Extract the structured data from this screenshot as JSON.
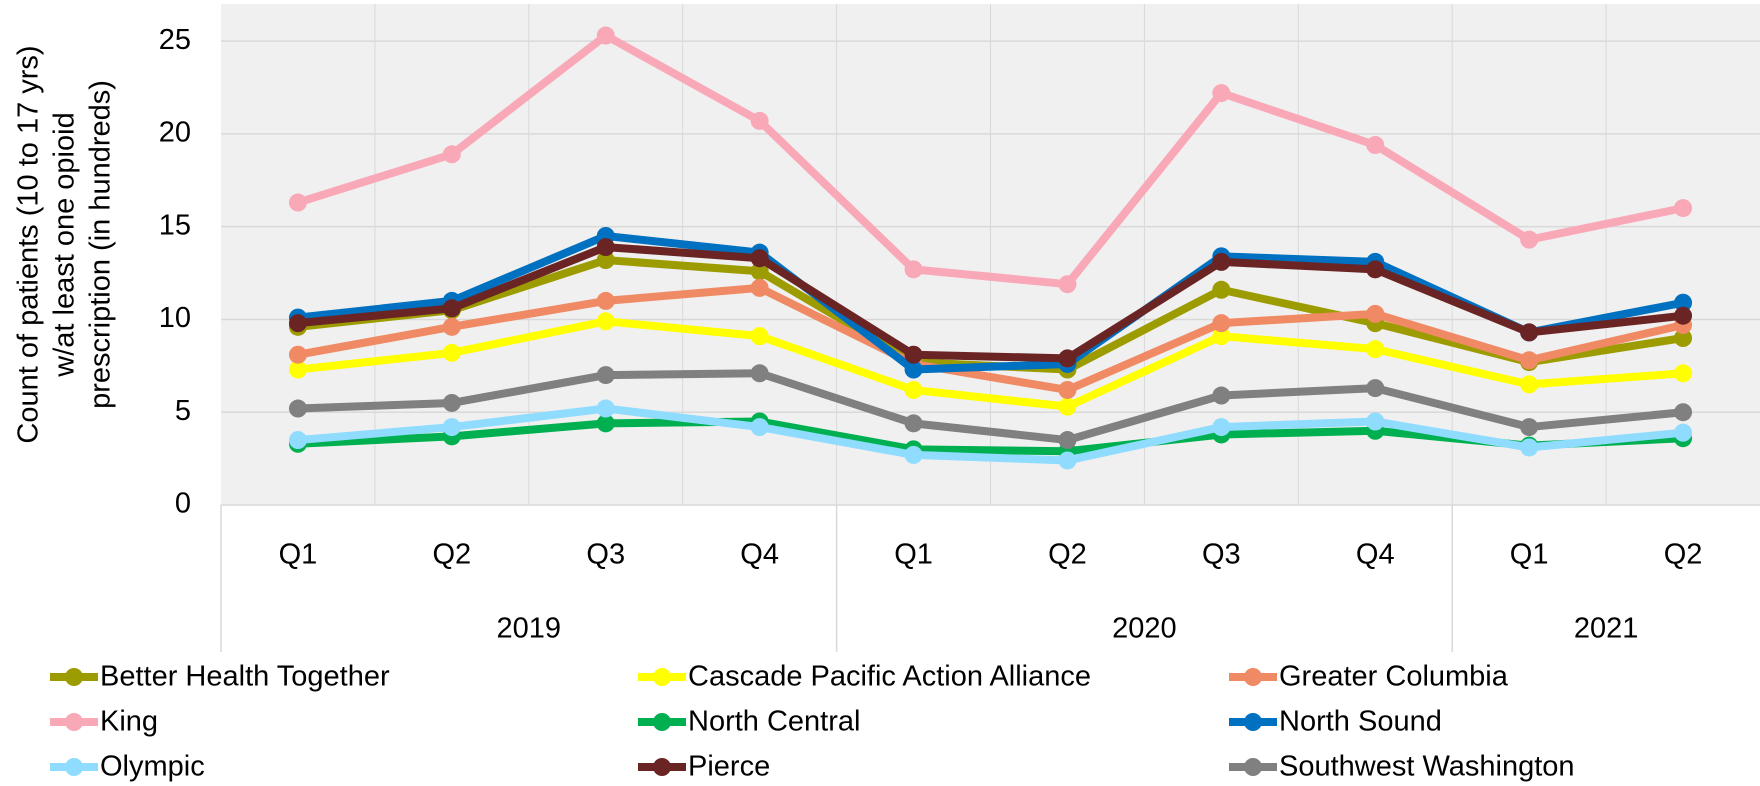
{
  "chart_data": {
    "type": "line",
    "ylabel": [
      "Count of patients (10 to 17 yrs)",
      "w/at least one opioid",
      "prescription (in hundreds)"
    ],
    "category_groups": [
      {
        "label": "2019",
        "categories": [
          "Q1",
          "Q2",
          "Q3",
          "Q4"
        ]
      },
      {
        "label": "2020",
        "categories": [
          "Q1",
          "Q2",
          "Q3",
          "Q4"
        ]
      },
      {
        "label": "2021",
        "categories": [
          "Q1",
          "Q2"
        ]
      }
    ],
    "ylim": [
      0,
      27
    ],
    "yticks": [
      0,
      5,
      10,
      15,
      20,
      25
    ],
    "grid": true,
    "legend": "bottom",
    "series": [
      {
        "name": "Better Health Together",
        "color": "#9c9c00",
        "values": [
          9.6,
          10.5,
          13.2,
          12.6,
          7.7,
          7.3,
          11.6,
          9.8,
          7.7,
          9.0
        ]
      },
      {
        "name": "Cascade Pacific Action Alliance",
        "color": "#ffff00",
        "values": [
          7.3,
          8.2,
          9.9,
          9.1,
          6.2,
          5.3,
          9.1,
          8.4,
          6.5,
          7.1
        ]
      },
      {
        "name": "Greater Columbia",
        "color": "#f08a64",
        "values": [
          8.1,
          9.6,
          11.0,
          11.7,
          7.6,
          6.2,
          9.8,
          10.3,
          7.8,
          9.7
        ]
      },
      {
        "name": "King",
        "color": "#f9a8b8",
        "values": [
          16.3,
          18.9,
          25.3,
          20.7,
          12.7,
          11.9,
          22.2,
          19.4,
          14.3,
          16.0
        ]
      },
      {
        "name": "North Central",
        "color": "#00b050",
        "values": [
          3.3,
          3.7,
          4.4,
          4.5,
          3.0,
          2.9,
          3.8,
          4.0,
          3.2,
          3.6
        ]
      },
      {
        "name": "North Sound",
        "color": "#0070c0",
        "values": [
          10.1,
          11.0,
          14.5,
          13.6,
          7.3,
          7.6,
          13.4,
          13.1,
          9.3,
          10.9
        ]
      },
      {
        "name": "Olympic",
        "color": "#8fdcff",
        "values": [
          3.5,
          4.2,
          5.2,
          4.2,
          2.7,
          2.4,
          4.2,
          4.5,
          3.1,
          3.9
        ]
      },
      {
        "name": "Pierce",
        "color": "#6b2424",
        "values": [
          9.8,
          10.6,
          13.9,
          13.3,
          8.1,
          7.9,
          13.1,
          12.7,
          9.3,
          10.2
        ]
      },
      {
        "name": "Southwest Washington",
        "color": "#808080",
        "values": [
          5.2,
          5.5,
          7.0,
          7.1,
          4.4,
          3.5,
          5.9,
          6.3,
          4.2,
          5.0
        ]
      }
    ]
  }
}
